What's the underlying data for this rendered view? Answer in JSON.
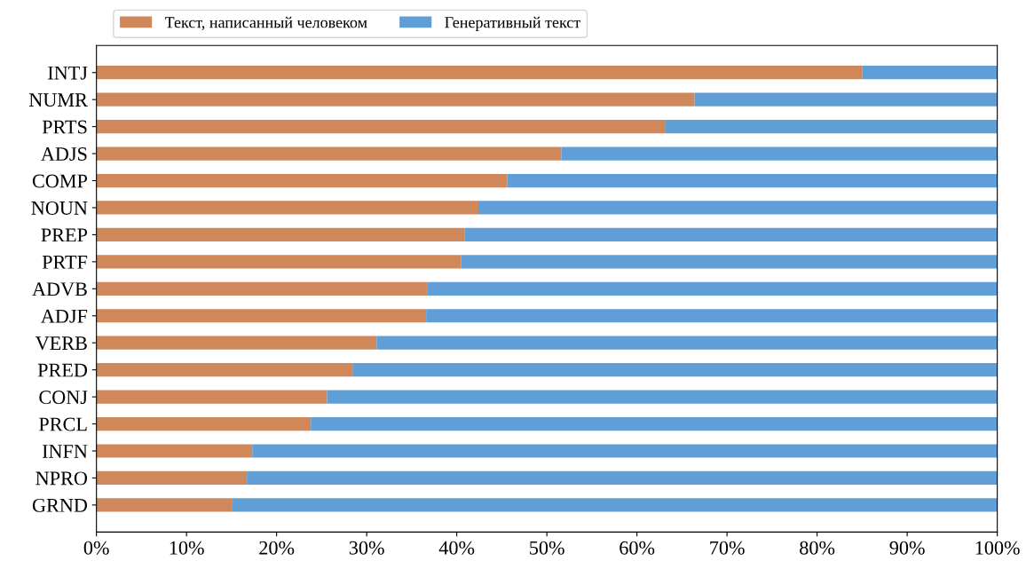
{
  "chart_data": {
    "type": "bar",
    "orientation": "horizontal",
    "stacked": true,
    "categories": [
      "INTJ",
      "NUMR",
      "PRTS",
      "ADJS",
      "COMP",
      "NOUN",
      "PREP",
      "PRTF",
      "ADVB",
      "ADJF",
      "VERB",
      "PRED",
      "CONJ",
      "PRCL",
      "INFN",
      "NPRO",
      "GRND"
    ],
    "series": [
      {
        "name": "Текст, написанный человеком",
        "color": "#d0885a",
        "values": [
          85.0,
          66.4,
          63.1,
          51.6,
          45.6,
          42.4,
          40.9,
          40.5,
          36.7,
          36.6,
          31.1,
          28.5,
          25.6,
          23.8,
          17.3,
          16.7,
          15.1
        ]
      },
      {
        "name": "Генеративный текст",
        "color": "#5f9ed6",
        "values": [
          15.0,
          33.6,
          36.9,
          48.4,
          54.4,
          57.6,
          59.1,
          59.5,
          63.3,
          63.4,
          68.9,
          71.5,
          74.4,
          76.2,
          82.7,
          83.3,
          84.9
        ]
      }
    ],
    "xlim": [
      0,
      100
    ],
    "xticks": [
      {
        "value": 0,
        "label": "0%"
      },
      {
        "value": 10,
        "label": "10%"
      },
      {
        "value": 20,
        "label": "20%"
      },
      {
        "value": 30,
        "label": "30%"
      },
      {
        "value": 40,
        "label": "40%"
      },
      {
        "value": 50,
        "label": "50%"
      },
      {
        "value": 60,
        "label": "60%"
      },
      {
        "value": 70,
        "label": "70%"
      },
      {
        "value": 80,
        "label": "80%"
      },
      {
        "value": 90,
        "label": "90%"
      },
      {
        "value": 100,
        "label": "100%"
      }
    ],
    "grid": false,
    "legend": "top"
  }
}
